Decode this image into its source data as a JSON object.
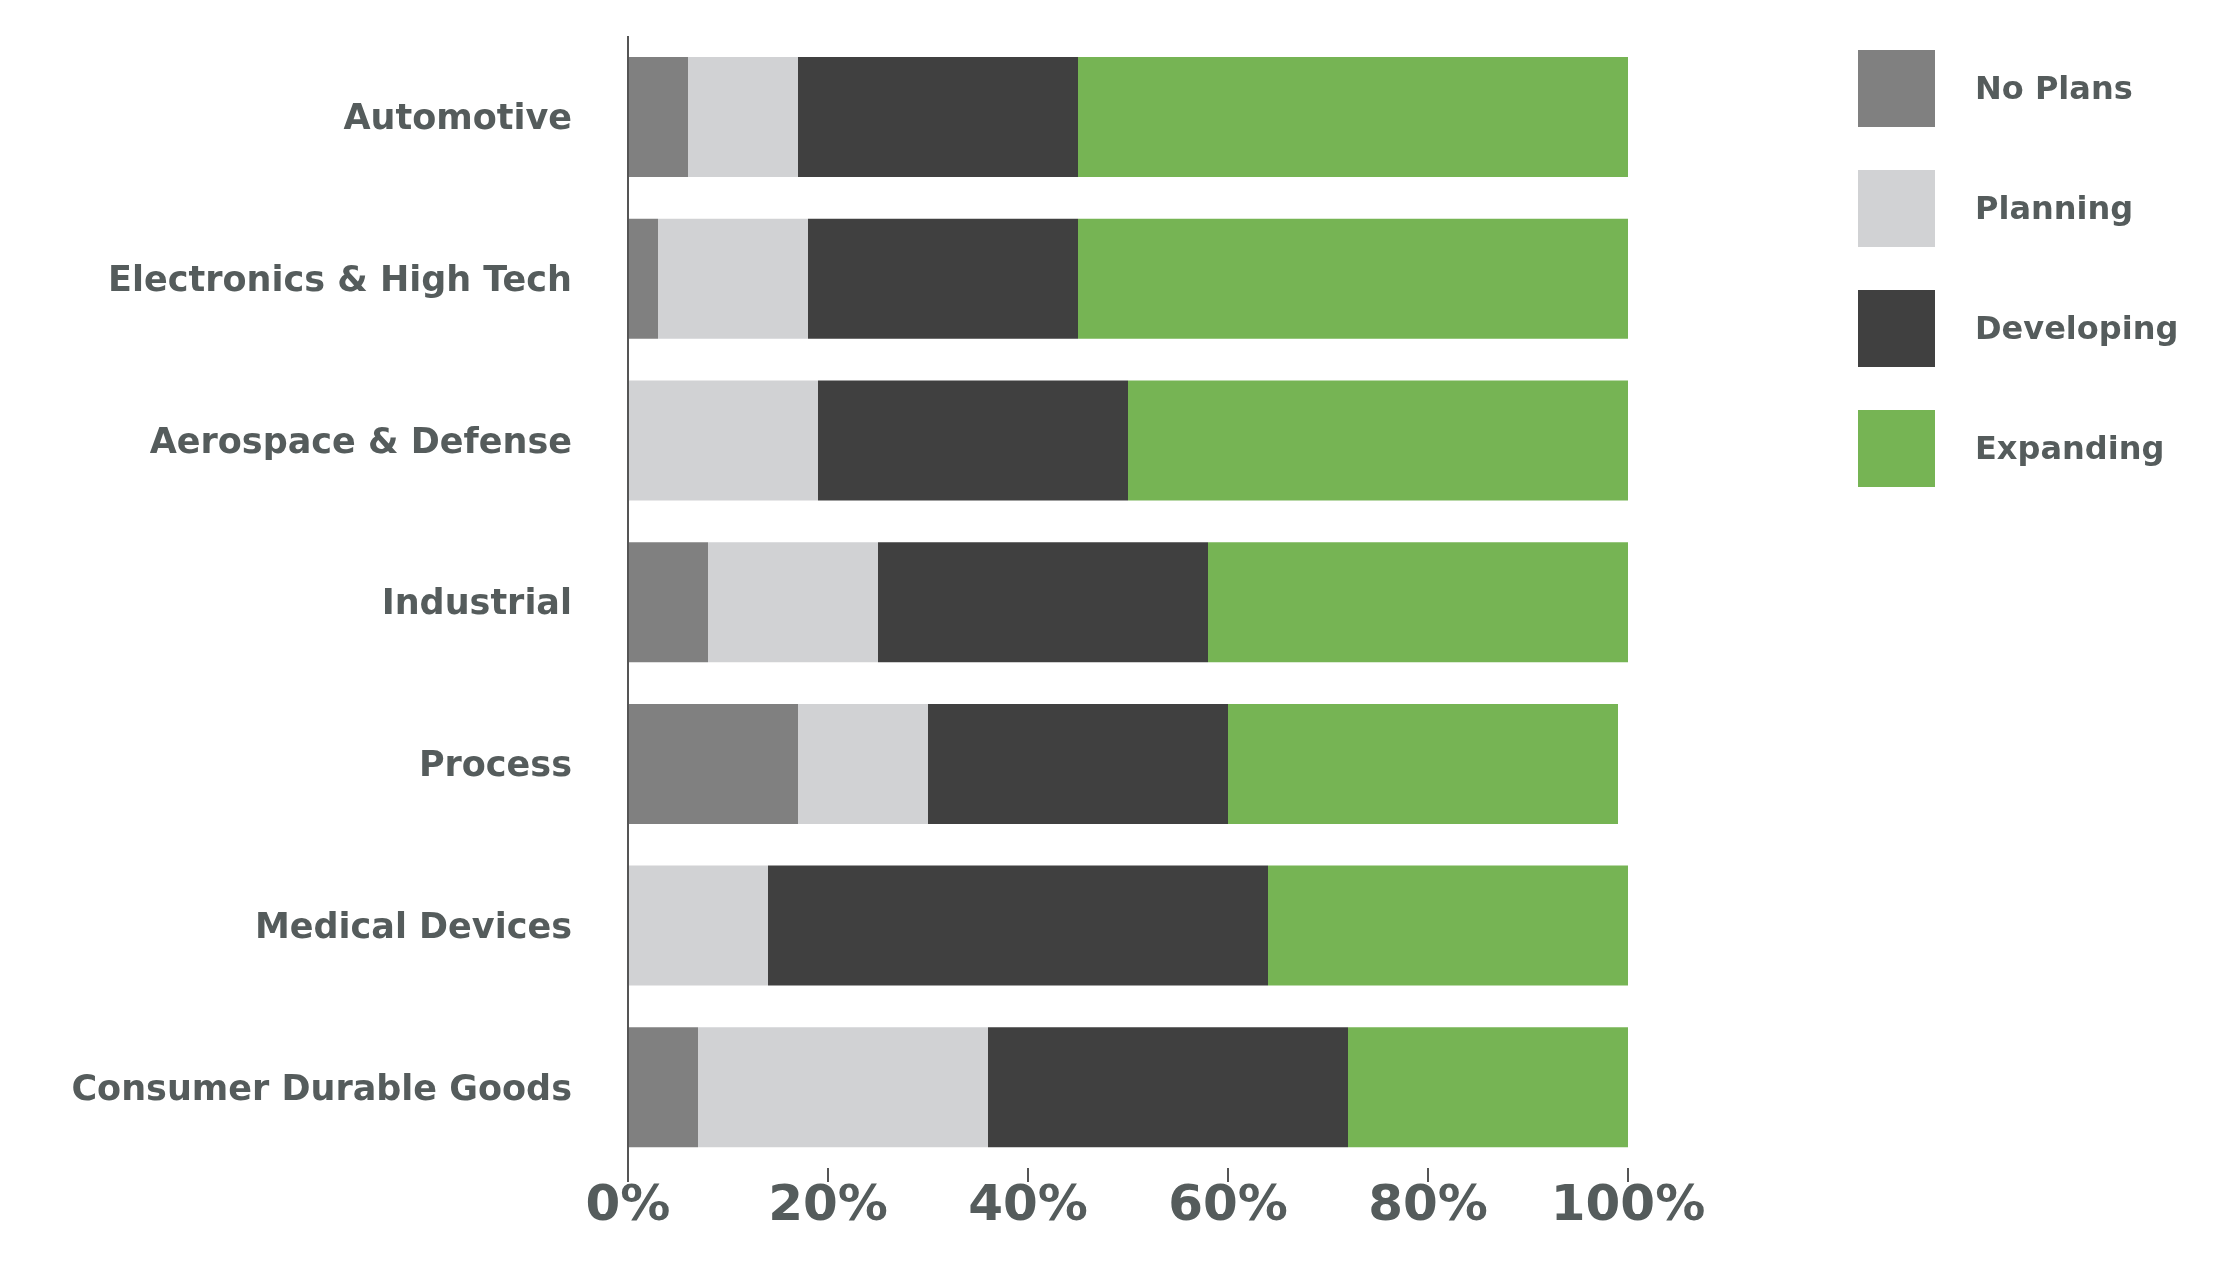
{
  "chart_data": {
    "type": "bar",
    "orientation": "horizontal",
    "stacked": true,
    "categories": [
      "Automotive",
      "Electronics & High Tech",
      "Aerospace & Defense",
      "Industrial",
      "Process",
      "Medical Devices",
      "Consumer Durable Goods"
    ],
    "series": [
      {
        "name": "No Plans",
        "color": "#808080",
        "values": [
          6,
          3,
          0,
          8,
          17,
          0,
          7
        ]
      },
      {
        "name": "Planning",
        "color": "#d1d2d4",
        "values": [
          11,
          15,
          19,
          17,
          13,
          14,
          29
        ]
      },
      {
        "name": "Developing",
        "color": "#404040",
        "values": [
          28,
          27,
          31,
          33,
          30,
          50,
          36
        ]
      },
      {
        "name": "Expanding",
        "color": "#76b454",
        "values": [
          55,
          55,
          50,
          42,
          39,
          36,
          28
        ]
      }
    ],
    "xlim": [
      0,
      100
    ],
    "xticks": [
      {
        "value": 0,
        "label": "0%"
      },
      {
        "value": 20,
        "label": "20%"
      },
      {
        "value": 40,
        "label": "40%"
      },
      {
        "value": 60,
        "label": "60%"
      },
      {
        "value": 80,
        "label": "80%"
      },
      {
        "value": 100,
        "label": "100%"
      }
    ],
    "grid": false,
    "legend": "top right"
  }
}
